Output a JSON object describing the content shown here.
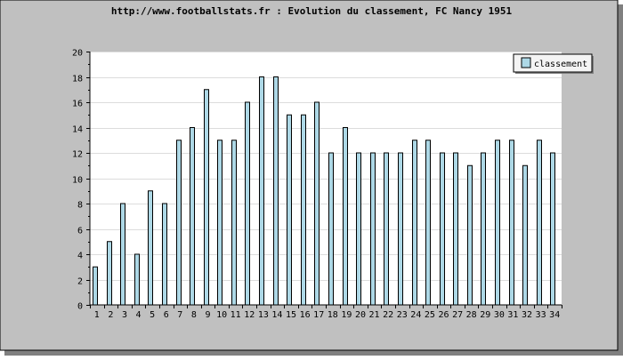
{
  "chart_data": {
    "type": "bar",
    "title": "http://www.footballstats.fr : Evolution du classement, FC Nancy 1951",
    "xlabel": "",
    "ylabel": "",
    "categories": [
      "1",
      "2",
      "3",
      "4",
      "5",
      "6",
      "7",
      "8",
      "9",
      "10",
      "11",
      "12",
      "13",
      "14",
      "15",
      "16",
      "17",
      "18",
      "19",
      "20",
      "21",
      "22",
      "23",
      "24",
      "25",
      "26",
      "27",
      "28",
      "29",
      "30",
      "31",
      "32",
      "33",
      "34"
    ],
    "series": [
      {
        "name": "classement",
        "values": [
          3,
          5,
          8,
          4,
          9,
          8,
          13,
          14,
          17,
          13,
          13,
          16,
          18,
          18,
          15,
          15,
          16,
          12,
          14,
          12,
          12,
          12,
          12,
          13,
          13,
          12,
          12,
          11,
          12,
          13,
          13,
          11,
          13,
          12
        ]
      }
    ],
    "ylim": [
      0,
      20
    ],
    "yticks": [
      0,
      2,
      4,
      6,
      8,
      10,
      12,
      14,
      16,
      18,
      20
    ],
    "grid": true,
    "legend": "top-right",
    "colors": {
      "bar_fill": "#add8e6",
      "bar_stroke": "#000000",
      "frame_background": "#c0c0c0",
      "plot_background": "#ffffff",
      "grid": "#dcdcdc",
      "shadow": "#808080",
      "legend_background": "#f4f4f4"
    }
  }
}
